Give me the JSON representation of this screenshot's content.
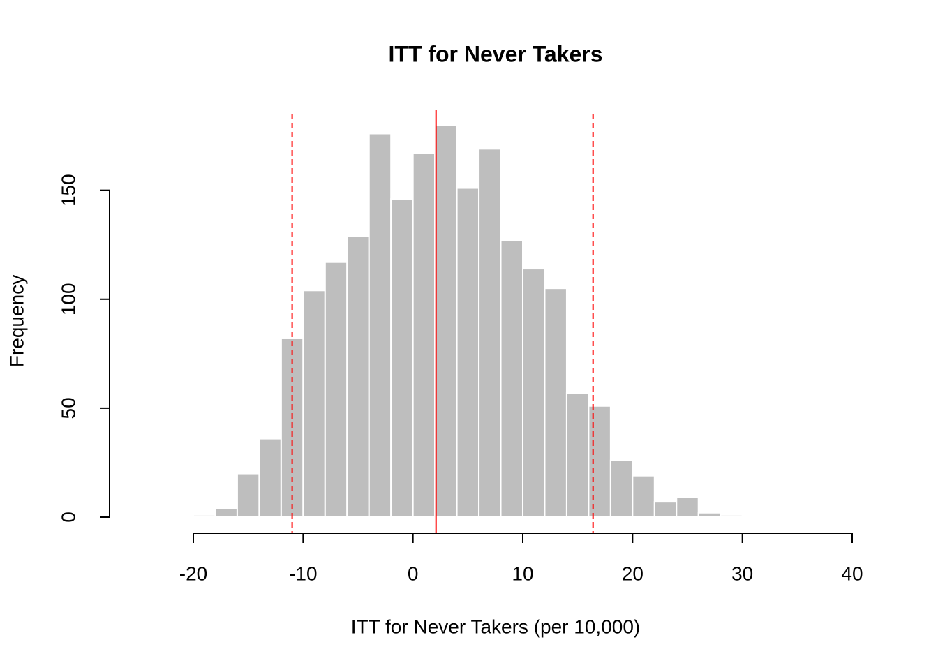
{
  "chart_data": {
    "type": "histogram",
    "title": "ITT for Never Takers",
    "x_label": "ITT for Never Takers (per 10,000)",
    "y_label": "Frequency",
    "bins": [
      -20,
      -18,
      -16,
      -14,
      -12,
      -10,
      -8,
      -6,
      -4,
      -2,
      0,
      2,
      4,
      6,
      8,
      10,
      12,
      14,
      16,
      18,
      20,
      22,
      24,
      26,
      28,
      30
    ],
    "values": [
      1,
      4,
      20,
      36,
      82,
      104,
      117,
      129,
      176,
      146,
      167,
      180,
      151,
      169,
      127,
      114,
      105,
      57,
      51,
      26,
      19,
      7,
      9,
      2,
      1
    ],
    "color": "#bebebe",
    "xlim": [
      -20,
      40
    ],
    "xticks": [
      -20,
      -10,
      0,
      10,
      20,
      30,
      40
    ],
    "ylim": [
      0,
      180
    ],
    "yticks": [
      0,
      50,
      100,
      150
    ],
    "vlines": [
      {
        "value": 2.1,
        "style": "solid",
        "color": "#ff0000"
      },
      {
        "value": -11.0,
        "style": "dashed",
        "color": "#ff0000"
      },
      {
        "value": 16.4,
        "style": "dashed",
        "color": "#ff0000"
      }
    ]
  }
}
